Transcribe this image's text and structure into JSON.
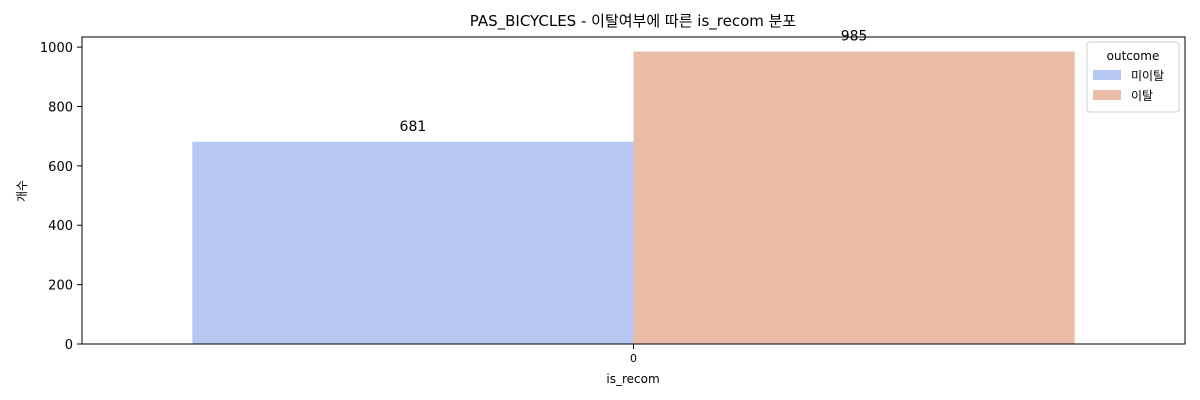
{
  "chart_data": {
    "type": "bar",
    "title": "PAS_BICYCLES - 이탈여부에 따른 is_recom 분포",
    "xlabel": "is_recom",
    "ylabel": "개수",
    "categories": [
      "0"
    ],
    "series": [
      {
        "name": "미이탈",
        "values": [
          681
        ],
        "color": "#b5c9f2"
      },
      {
        "name": "이탈",
        "values": [
          985
        ],
        "color": "#ebbca7"
      }
    ],
    "ylim": [
      0,
      1034
    ],
    "yticks": [
      0,
      200,
      400,
      600,
      800,
      1000
    ],
    "legend": {
      "title": "outcome",
      "placement": "top-right"
    },
    "grid": false
  }
}
